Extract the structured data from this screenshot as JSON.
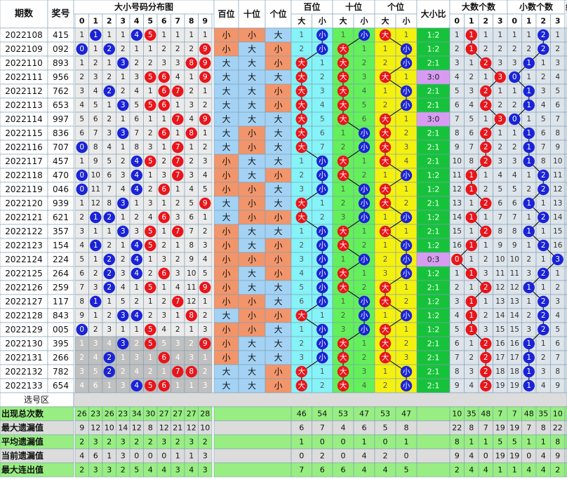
{
  "chart_data": {
    "type": "table",
    "title": "大小号码分布图",
    "headers": {
      "period": "期数",
      "number": "奖号",
      "dist": "大小号码分布图",
      "digits": [
        "0",
        "1",
        "2",
        "3",
        "4",
        "5",
        "6",
        "7",
        "8",
        "9"
      ],
      "hundreds": "百位",
      "tens": "十位",
      "units": "个位",
      "trend_hundreds": "百位",
      "trend_tens": "十位",
      "trend_units": "个位",
      "big": "大",
      "small": "小",
      "ratio": "大小比",
      "big_count": "大数个数",
      "small_count": "小数个数",
      "counts": [
        "0",
        "1",
        "2",
        "3"
      ],
      "extra": "组"
    },
    "rows": [
      {
        "period": "2022108",
        "number": "415"
      },
      {
        "period": "2022109",
        "number": "092"
      },
      {
        "period": "2022110",
        "number": "893"
      },
      {
        "period": "2022111",
        "number": "956"
      },
      {
        "period": "2022112",
        "number": "762"
      },
      {
        "period": "2022113",
        "number": "653"
      },
      {
        "period": "2022114",
        "number": "997"
      },
      {
        "period": "2022115",
        "number": "836"
      },
      {
        "period": "2022116",
        "number": "707"
      },
      {
        "period": "2022117",
        "number": "457"
      },
      {
        "period": "2022118",
        "number": "470"
      },
      {
        "period": "2022119",
        "number": "046"
      },
      {
        "period": "2022120",
        "number": "939"
      },
      {
        "period": "2022121",
        "number": "621"
      },
      {
        "period": "2022122",
        "number": "357"
      },
      {
        "period": "2022123",
        "number": "154"
      },
      {
        "period": "2022124",
        "number": "224"
      },
      {
        "period": "2022125",
        "number": "264"
      },
      {
        "period": "2022126",
        "number": "259"
      },
      {
        "period": "2022127",
        "number": "117"
      },
      {
        "period": "2022128",
        "number": "843"
      },
      {
        "period": "2022129",
        "number": "005"
      },
      {
        "period": "2022130",
        "number": "395"
      },
      {
        "period": "2022131",
        "number": "266"
      },
      {
        "period": "2022132",
        "number": "782"
      },
      {
        "period": "2022133",
        "number": "654"
      }
    ],
    "select_label": "选号区",
    "stats": [
      {
        "label": "出现总次数",
        "digits": [
          "26",
          "23",
          "26",
          "23",
          "34",
          "30",
          "27",
          "27",
          "27",
          "28"
        ],
        "hund": [
          "46",
          "54"
        ],
        "tens": [
          "53",
          "47"
        ],
        "units": [
          "53",
          "47"
        ],
        "big": [
          "10",
          "35",
          "48",
          "7"
        ],
        "small": [
          "7",
          "48",
          "35",
          "10"
        ]
      },
      {
        "label": "最大遗漏值",
        "digits": [
          "9",
          "12",
          "10",
          "14",
          "12",
          "8",
          "12",
          "21",
          "12",
          "10"
        ],
        "hund": [
          "6",
          "7"
        ],
        "tens": [
          "4",
          "6"
        ],
        "units": [
          "5",
          "8"
        ],
        "big": [
          "22",
          "8",
          "7",
          "19"
        ],
        "small": [
          "19",
          "7",
          "8",
          "22"
        ]
      },
      {
        "label": "平均遗漏值",
        "digits": [
          "2",
          "3",
          "2",
          "3",
          "2",
          "2",
          "3",
          "2",
          "3",
          "2"
        ],
        "hund": [
          "1",
          "0"
        ],
        "tens": [
          "0",
          "1"
        ],
        "units": [
          "0",
          "1"
        ],
        "big": [
          "8",
          "1",
          "1",
          "5"
        ],
        "small": [
          "5",
          "1",
          "1",
          "8"
        ]
      },
      {
        "label": "当前遗漏值",
        "digits": [
          "4",
          "6",
          "1",
          "3",
          "0",
          "0",
          "0",
          "1",
          "1",
          "3"
        ],
        "hund": [
          "0",
          "2"
        ],
        "tens": [
          "0",
          "4"
        ],
        "units": [
          "2",
          "0"
        ],
        "big": [
          "9",
          "4",
          "0",
          "19"
        ],
        "small": [
          "19",
          "0",
          "4",
          "9"
        ]
      },
      {
        "label": "最大连出值",
        "digits": [
          "2",
          "3",
          "3",
          "2",
          "5",
          "4",
          "4",
          "3",
          "4",
          "3"
        ],
        "hund": [
          "7",
          "6"
        ],
        "tens": [
          "6",
          "4"
        ],
        "units": [
          "4",
          "5"
        ],
        "big": [
          "2",
          "4",
          "4",
          "1"
        ],
        "small": [
          "1",
          "4",
          "4",
          "2"
        ]
      }
    ],
    "colors": {
      "red": "#e8151b",
      "blue": "#1a23d6",
      "gray": "#8c8c8c",
      "orange": "#f2956b",
      "sky": "#a4d2f4",
      "cyan": "#85f3f7",
      "green": "#63f05a",
      "yellow": "#f5f10f",
      "ratio_green": "#17c23b",
      "ratio_violet": "#d79cf2",
      "statrow": "#98ee82"
    }
  }
}
